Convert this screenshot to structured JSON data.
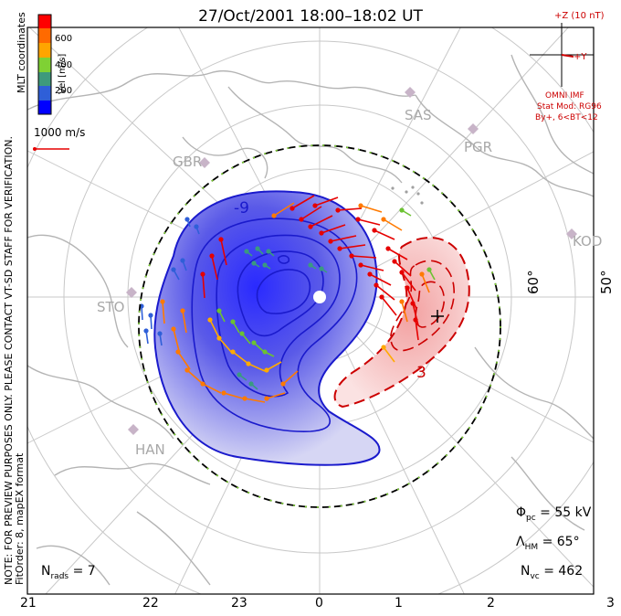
{
  "title": "27/Oct/2001 18:00–18:02 UT",
  "notice": {
    "line1": "NOTE: FOR PREVIEW PURPOSES ONLY. PLEASE CONTACT VT-SD STAFF FOR VERIFICATION.",
    "line2": "FitOrder: 8, mapEX format",
    "coords": "MLT coordinates"
  },
  "color_bar": {
    "label": "Vel [m/s]",
    "ticks": [
      "600",
      "400",
      "200"
    ],
    "colors": [
      "#ff0000",
      "#ff6a00",
      "#ffa500",
      "#7fd134",
      "#3e9a7c",
      "#2f5fd8",
      "#0000ff"
    ]
  },
  "velocity_scale": {
    "label": "1000 m/s"
  },
  "imf": {
    "z_label": "+Z (10 nT)",
    "y_label": "+Y",
    "source": "OMNI IMF",
    "model": "Stat Mod: RG96",
    "bin": "By+, 6<BT<12"
  },
  "stations": [
    "SAS",
    "PGR",
    "GBR",
    "KOD",
    "STO",
    "HAN"
  ],
  "latitudes": [
    "60°",
    "50°"
  ],
  "mlt_labels": [
    "21",
    "22",
    "23",
    "0",
    "1",
    "2",
    "3"
  ],
  "stats": {
    "phi_pc": {
      "symbol": "Φ",
      "sub": "pc",
      "value": "= 55 kV"
    },
    "lambda_hm": {
      "symbol": "Λ",
      "sub": "HM",
      "value": "= 65°"
    },
    "n_vc": {
      "symbol": "N",
      "sub": "vc",
      "value": "= 462"
    },
    "n_rads": {
      "symbol": "N",
      "sub": "rads",
      "value": "= 7"
    }
  },
  "contour_labels": [
    "-9",
    "3"
  ],
  "colors": {
    "negative_cell": "#1a1acc",
    "positive_cell": "#cc0000",
    "grid": "#c8c8c8",
    "coast": "#b4b4b4"
  }
}
